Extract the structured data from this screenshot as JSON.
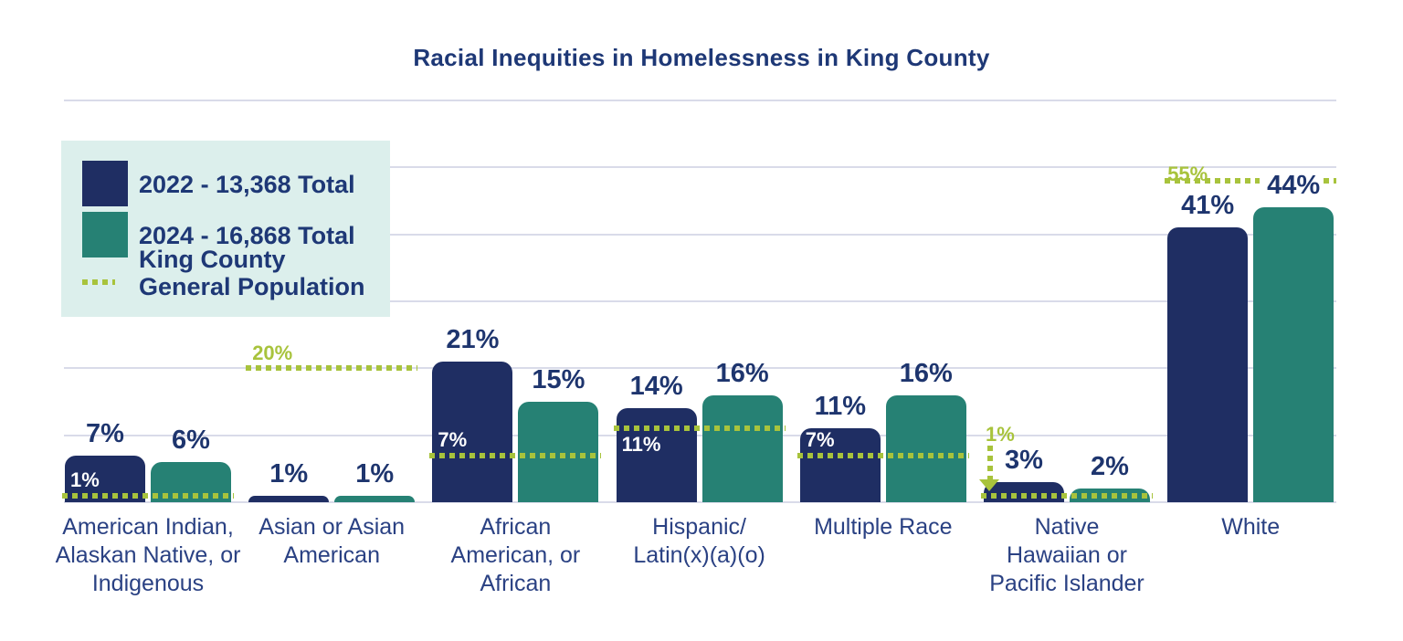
{
  "title": "Racial Inequities in Homelessness in King County",
  "legend": {
    "items": [
      {
        "label": "2022 - 13,368 Total",
        "color": "#1f2e63"
      },
      {
        "label": "2024 - 16,868 Total",
        "color": "#268174"
      }
    ],
    "genpop": {
      "line1": "King County",
      "line2": "General Population",
      "color": "#a8c33c"
    }
  },
  "colors": {
    "navy_bar": "#1f2e63",
    "teal_bar": "#268174",
    "genpop_green": "#a8c33c",
    "text_navy": "#1e356e",
    "category_text": "#2a4183",
    "gridline": "#d9dbe9",
    "legend_bg": "#dcefec",
    "white_label": "#ffffff"
  },
  "chart_data": {
    "type": "bar",
    "title": "Racial Inequities in Homelessness in King County",
    "categories": [
      "American Indian, Alaskan Native, or Indigenous",
      "Asian or Asian American",
      "African American, or African",
      "Hispanic/Latin(x)(a)(o)",
      "Multiple Race",
      "Native Hawaiian or Pacific Islander",
      "White"
    ],
    "category_label_lines": [
      [
        "American Indian,",
        "Alaskan Native, or",
        "Indigenous"
      ],
      [
        "Asian or Asian",
        "American"
      ],
      [
        "African",
        "American, or",
        "African"
      ],
      [
        "Hispanic/",
        "Latin(x)(a)(o)"
      ],
      [
        "Multiple Race"
      ],
      [
        "Native",
        "Hawaiian or",
        "Pacific Islander"
      ],
      [
        "White"
      ]
    ],
    "series": [
      {
        "name": "2022 - 13,368 Total",
        "color": "#1f2e63",
        "values": [
          7,
          1,
          21,
          14,
          11,
          3,
          41
        ]
      },
      {
        "name": "2024 - 16,868 Total",
        "color": "#268174",
        "values": [
          6,
          1,
          15,
          16,
          16,
          2,
          44
        ]
      }
    ],
    "general_population": {
      "name": "King County General Population",
      "color": "#a8c33c",
      "values": [
        1,
        20,
        7,
        11,
        7,
        1,
        55
      ],
      "display": [
        {
          "type": "white",
          "pos": "above"
        },
        {
          "type": "green",
          "pos": "above"
        },
        {
          "type": "white",
          "pos": "above"
        },
        {
          "type": "white",
          "pos": "below"
        },
        {
          "type": "white",
          "pos": "above"
        },
        {
          "type": "green-arrow"
        },
        {
          "type": "green",
          "split": true,
          "display_pct": 48
        }
      ]
    },
    "ylim": [
      0,
      60
    ],
    "grid_step": 10,
    "value_suffix": "%",
    "grid": true,
    "legend_position": "top-left"
  }
}
